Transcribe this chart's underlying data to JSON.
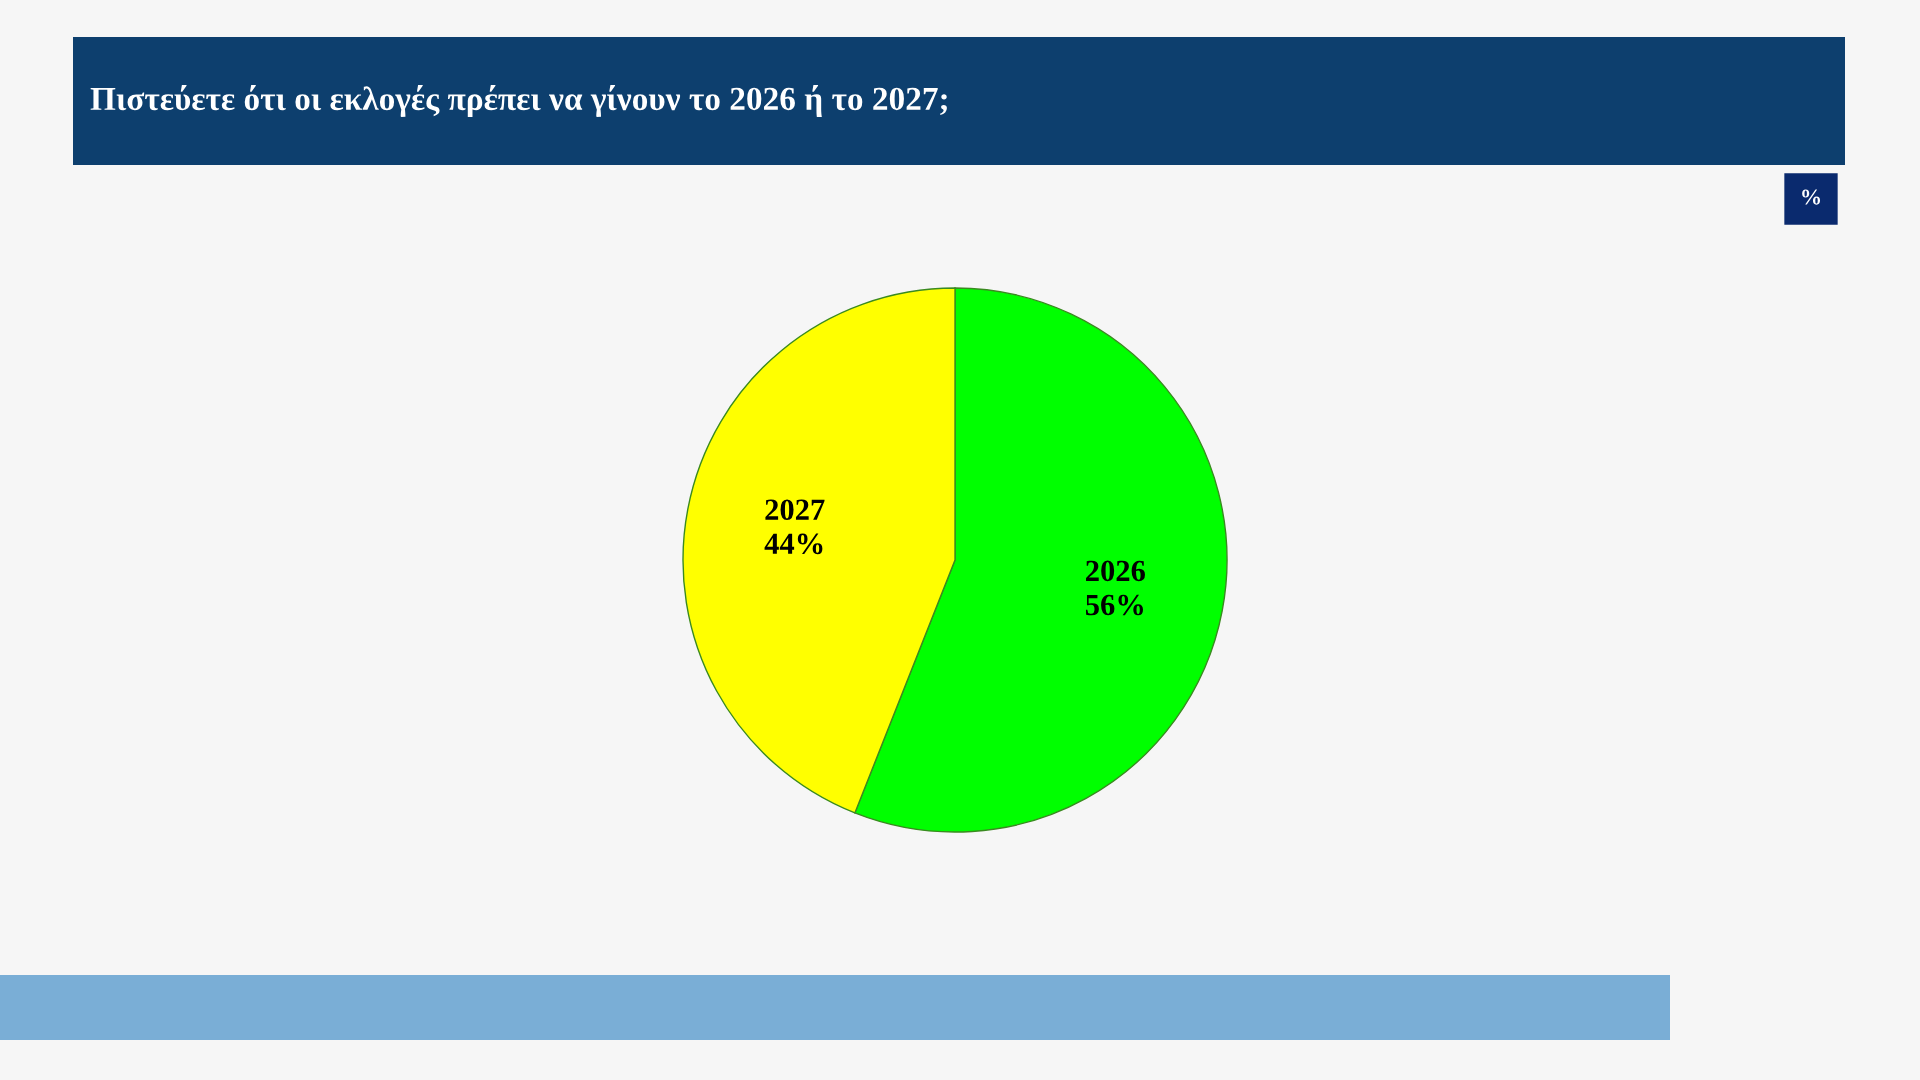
{
  "chart_data": {
    "type": "pie",
    "title": "Πιστεύετε ότι οι εκλογές πρέπει να γίνουν το 2026 ή το 2027;",
    "categories": [
      "2026",
      "2027"
    ],
    "values": [
      56,
      44
    ],
    "colors": [
      "#00ff00",
      "#ffff00"
    ],
    "value_labels": [
      "56%",
      "44%"
    ],
    "annotations": [
      "%"
    ],
    "legend": false
  }
}
